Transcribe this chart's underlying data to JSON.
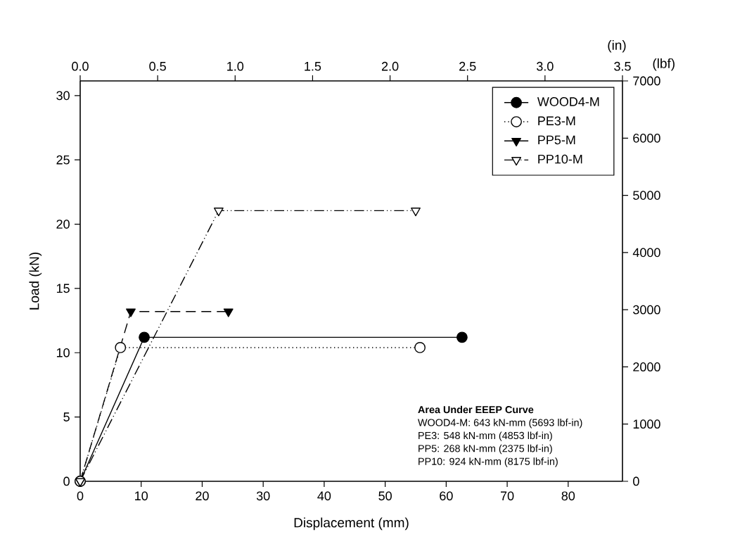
{
  "chart_data": {
    "type": "line",
    "xlabel": "Displacement (mm)",
    "ylabel": "Load (kN)",
    "x2label": "(in)",
    "y2label": "(lbf)",
    "xlim": [
      0,
      88.9
    ],
    "xticks": [
      0,
      10,
      20,
      30,
      40,
      50,
      60,
      70,
      80
    ],
    "ylim": [
      0,
      31.14
    ],
    "yticks": [
      0,
      5,
      10,
      15,
      20,
      25,
      30
    ],
    "x2lim": [
      0,
      3.5
    ],
    "x2ticks": [
      {
        "value": 0,
        "label": "0.0"
      },
      0.5,
      {
        "value": 1,
        "label": "1.0"
      },
      1.5,
      {
        "value": 2,
        "label": "2.0"
      },
      2.5,
      {
        "value": 3,
        "label": "3.0"
      },
      3.5
    ],
    "y2lim": [
      0,
      7000
    ],
    "y2ticks": [
      0,
      1000,
      2000,
      3000,
      4000,
      5000,
      6000,
      7000
    ],
    "grid": false,
    "legend": "top right",
    "series": [
      {
        "name": "WOOD4-M",
        "color": "#000000",
        "marker": "circle",
        "colors": [
          "#000000",
          "#000000",
          "#000000"
        ],
        "line_style": "solid",
        "x": [
          0,
          10.5,
          62.6
        ],
        "values": [
          0,
          11.2,
          11.2
        ]
      },
      {
        "name": "PE3-M",
        "color": "#000000",
        "marker": "circle",
        "colors": [
          "#ffffff",
          "#ffffff",
          "#ffffff"
        ],
        "line_style": "dotted",
        "x": [
          0,
          6.6,
          55.7
        ],
        "values": [
          0,
          10.4,
          10.4
        ]
      },
      {
        "name": "PP5-M",
        "color": "#000000",
        "marker": "triangle",
        "colors": [
          "#000000",
          "#000000",
          "#000000"
        ],
        "line_style": "dashed",
        "x": [
          0,
          8.3,
          24.3
        ],
        "values": [
          0,
          13.2,
          13.2
        ]
      },
      {
        "name": "PP10-M",
        "color": "#000000",
        "marker": "triangle",
        "colors": [
          "#ffffff",
          "#ffffff",
          "#ffffff"
        ],
        "line_style": "dashdotdotted",
        "x": [
          0,
          22.7,
          55.0
        ],
        "values": [
          0,
          21.05,
          21.05
        ]
      }
    ],
    "annotations": [
      "Area Under EEEP Curve",
      "WOOD4-M:  643 kN-mm (5693 lbf-in)",
      "PE3:  548 kN-mm (4853 lbf-in)",
      "PP5:  268 kN-mm (2375 lbf-in)",
      "PP10:  924 kN-mm (8175 lbf-in)"
    ]
  }
}
